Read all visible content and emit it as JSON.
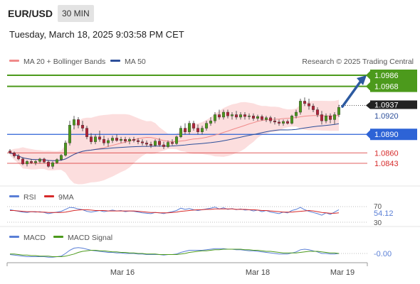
{
  "header": {
    "symbol": "EUR/USD",
    "timeframe": "30 MIN",
    "datetime": "Tuesday, March 18, 2025 9:03:58 PM CET"
  },
  "chart_data": {
    "type": "candlestick",
    "legend": [
      {
        "label": "MA 20 + Bollinger Bands",
        "color": "#f08a8a"
      },
      {
        "label": "MA 50",
        "color": "#2d4f9a"
      }
    ],
    "source": "Research © 2025 Trading Central",
    "x_tick_labels": [
      "Mar 16",
      "Mar 18",
      "Mar 19"
    ],
    "price_levels": [
      {
        "label": "1.0986",
        "value": 1.0986,
        "color": "#4c9a1c",
        "style": "resistance",
        "tag": "filled"
      },
      {
        "label": "1.0968",
        "value": 1.0968,
        "color": "#4c9a1c",
        "style": "resistance",
        "tag": "filled"
      },
      {
        "label": "1.0937",
        "value": 1.0937,
        "color": "#222222",
        "style": "current",
        "tag": "filled"
      },
      {
        "label": "1.0920",
        "value": 1.092,
        "color": "#2d4f9a",
        "style": "ma",
        "tag": "text"
      },
      {
        "label": "1.0890",
        "value": 1.089,
        "color": "#2d63d6",
        "style": "pivot",
        "tag": "filled"
      },
      {
        "label": "1.0860",
        "value": 1.086,
        "color": "#d62a2a",
        "style": "support",
        "tag": "text"
      },
      {
        "label": "1.0843",
        "value": 1.0843,
        "color": "#d62a2a",
        "style": "support",
        "tag": "text"
      }
    ],
    "candles_ohlc": [
      [
        1.0863,
        1.0866,
        1.0858,
        1.086
      ],
      [
        1.086,
        1.0862,
        1.0852,
        1.0855
      ],
      [
        1.0855,
        1.0858,
        1.0848,
        1.085
      ],
      [
        1.085,
        1.0853,
        1.084,
        1.0842
      ],
      [
        1.0842,
        1.0848,
        1.0838,
        1.0846
      ],
      [
        1.0846,
        1.085,
        1.0842,
        1.0844
      ],
      [
        1.0844,
        1.0848,
        1.084,
        1.0846
      ],
      [
        1.0846,
        1.0852,
        1.0843,
        1.085
      ],
      [
        1.085,
        1.0852,
        1.0843,
        1.0845
      ],
      [
        1.0845,
        1.0848,
        1.0836,
        1.0838
      ],
      [
        1.0838,
        1.0846,
        1.0834,
        1.0844
      ],
      [
        1.0844,
        1.0851,
        1.0842,
        1.0849
      ],
      [
        1.0849,
        1.0858,
        1.0847,
        1.0856
      ],
      [
        1.0856,
        1.088,
        1.0854,
        1.0876
      ],
      [
        1.0876,
        1.0912,
        1.0872,
        1.0905
      ],
      [
        1.0905,
        1.092,
        1.0898,
        1.0914
      ],
      [
        1.0914,
        1.0918,
        1.09,
        1.0905
      ],
      [
        1.0905,
        1.0912,
        1.0895,
        1.09
      ],
      [
        1.09,
        1.0904,
        1.0882,
        1.0886
      ],
      [
        1.0886,
        1.0892,
        1.0874,
        1.0878
      ],
      [
        1.0878,
        1.089,
        1.0874,
        1.0886
      ],
      [
        1.0886,
        1.0896,
        1.0878,
        1.0882
      ],
      [
        1.0882,
        1.0888,
        1.0872,
        1.0876
      ],
      [
        1.0876,
        1.0884,
        1.087,
        1.088
      ],
      [
        1.088,
        1.0888,
        1.0876,
        1.0884
      ],
      [
        1.0884,
        1.089,
        1.0878,
        1.088
      ],
      [
        1.088,
        1.0886,
        1.0876,
        1.0882
      ],
      [
        1.0882,
        1.0886,
        1.0876,
        1.0879
      ],
      [
        1.0879,
        1.0885,
        1.0874,
        1.0882
      ],
      [
        1.0882,
        1.0886,
        1.0877,
        1.088
      ],
      [
        1.088,
        1.0884,
        1.0874,
        1.0878
      ],
      [
        1.0878,
        1.0882,
        1.0872,
        1.0876
      ],
      [
        1.0876,
        1.088,
        1.087,
        1.0874
      ],
      [
        1.0874,
        1.0878,
        1.0868,
        1.0872
      ],
      [
        1.0872,
        1.0882,
        1.087,
        1.0879
      ],
      [
        1.0879,
        1.0884,
        1.087,
        1.0873
      ],
      [
        1.0873,
        1.0878,
        1.0866,
        1.087
      ],
      [
        1.087,
        1.088,
        1.0868,
        1.0877
      ],
      [
        1.0877,
        1.0882,
        1.0872,
        1.0875
      ],
      [
        1.0875,
        1.0888,
        1.0873,
        1.0886
      ],
      [
        1.0886,
        1.0904,
        1.0884,
        1.09
      ],
      [
        1.09,
        1.0908,
        1.089,
        1.0894
      ],
      [
        1.0894,
        1.0912,
        1.089,
        1.0908
      ],
      [
        1.0908,
        1.0912,
        1.0896,
        1.09
      ],
      [
        1.09,
        1.0906,
        1.089,
        1.0894
      ],
      [
        1.0894,
        1.0904,
        1.089,
        1.09
      ],
      [
        1.09,
        1.0912,
        1.0896,
        1.0908
      ],
      [
        1.0908,
        1.0918,
        1.0904,
        1.0912
      ],
      [
        1.0912,
        1.0926,
        1.0908,
        1.0922
      ],
      [
        1.0922,
        1.093,
        1.0914,
        1.0918
      ],
      [
        1.0918,
        1.093,
        1.0914,
        1.0926
      ],
      [
        1.0926,
        1.093,
        1.0916,
        1.092
      ],
      [
        1.092,
        1.0926,
        1.0914,
        1.0922
      ],
      [
        1.0922,
        1.0928,
        1.0914,
        1.0918
      ],
      [
        1.0918,
        1.0926,
        1.0914,
        1.0922
      ],
      [
        1.0922,
        1.0926,
        1.0914,
        1.0919
      ],
      [
        1.0919,
        1.0924,
        1.0914,
        1.092
      ],
      [
        1.092,
        1.0924,
        1.0912,
        1.0916
      ],
      [
        1.0916,
        1.0922,
        1.0912,
        1.0919
      ],
      [
        1.0919,
        1.0922,
        1.0912,
        1.0914
      ],
      [
        1.0914,
        1.092,
        1.091,
        1.0917
      ],
      [
        1.0917,
        1.092,
        1.0908,
        1.0912
      ],
      [
        1.0912,
        1.0918,
        1.0906,
        1.091
      ],
      [
        1.091,
        1.0914,
        1.0904,
        1.0908
      ],
      [
        1.0908,
        1.0914,
        1.0904,
        1.0911
      ],
      [
        1.0911,
        1.0914,
        1.0906,
        1.0908
      ],
      [
        1.0908,
        1.0922,
        1.0906,
        1.092
      ],
      [
        1.092,
        1.093,
        1.0916,
        1.0926
      ],
      [
        1.0926,
        1.0948,
        1.0922,
        1.0944
      ],
      [
        1.0944,
        1.095,
        1.0936,
        1.094
      ],
      [
        1.094,
        1.0948,
        1.093,
        1.0936
      ],
      [
        1.0936,
        1.094,
        1.0926,
        1.093
      ],
      [
        1.093,
        1.0934,
        1.0918,
        1.0922
      ],
      [
        1.0922,
        1.0928,
        1.0906,
        1.0912
      ],
      [
        1.0912,
        1.0924,
        1.0908,
        1.092
      ],
      [
        1.092,
        1.0924,
        1.0908,
        1.0914
      ],
      [
        1.0914,
        1.0926,
        1.0906,
        1.0922
      ],
      [
        1.0922,
        1.0938,
        1.0918,
        1.0934
      ]
    ],
    "projection": {
      "from": 1.0934,
      "to": 1.0986,
      "color": "#2d5aa0"
    },
    "rsi": {
      "legend": [
        {
          "label": "RSI",
          "color": "#5a7fd6"
        },
        {
          "label": "9MA",
          "color": "#d62a2a"
        }
      ],
      "levels": [
        "70",
        "30"
      ],
      "value_label": "54.12",
      "ylim": [
        20,
        80
      ],
      "values": [
        62,
        60,
        58,
        56,
        55,
        57,
        56,
        57,
        55,
        52,
        54,
        56,
        58,
        63,
        68,
        67,
        64,
        62,
        58,
        56,
        58,
        60,
        57,
        59,
        61,
        59,
        60,
        57,
        59,
        58,
        56,
        54,
        53,
        52,
        55,
        54,
        52,
        55,
        57,
        60,
        66,
        63,
        65,
        62,
        60,
        62,
        64,
        66,
        69,
        64,
        67,
        63,
        65,
        62,
        64,
        61,
        62,
        59,
        61,
        57,
        60,
        56,
        54,
        52,
        56,
        54,
        60,
        63,
        68,
        62,
        58,
        55,
        52,
        48,
        54,
        50,
        56,
        62
      ],
      "ma": [
        60,
        60,
        59,
        58,
        57,
        57,
        57,
        56,
        56,
        55,
        55,
        55,
        55,
        56,
        58,
        60,
        61,
        62,
        62,
        61,
        60,
        60,
        60,
        59,
        59,
        59,
        59,
        59,
        59,
        59,
        58,
        57,
        56,
        55,
        55,
        54,
        54,
        54,
        55,
        56,
        58,
        59,
        60,
        61,
        62,
        62,
        63,
        63,
        64,
        64,
        64,
        64,
        64,
        63,
        63,
        63,
        62,
        62,
        61,
        60,
        60,
        59,
        58,
        57,
        56,
        56,
        56,
        57,
        58,
        59,
        60,
        59,
        57,
        55,
        54,
        53,
        53,
        54
      ]
    },
    "macd": {
      "legend": [
        {
          "label": "MACD",
          "color": "#5a7fd6"
        },
        {
          "label": "MACD Signal",
          "color": "#4c9a1c"
        }
      ],
      "value_label": "-0.00",
      "ylim": [
        -1.2,
        1.6
      ],
      "values": [
        -0.2,
        -0.3,
        -0.4,
        -0.5,
        -0.6,
        -0.6,
        -0.6,
        -0.6,
        -0.6,
        -0.7,
        -0.7,
        -0.6,
        -0.5,
        0.0,
        0.6,
        1.0,
        1.1,
        1.0,
        0.8,
        0.6,
        0.5,
        0.4,
        0.3,
        0.2,
        0.2,
        0.1,
        0.1,
        0.0,
        0.0,
        0.0,
        -0.1,
        -0.1,
        -0.2,
        -0.2,
        -0.2,
        -0.2,
        -0.3,
        -0.2,
        -0.2,
        -0.1,
        0.2,
        0.4,
        0.6,
        0.6,
        0.6,
        0.6,
        0.7,
        0.8,
        0.9,
        0.9,
        0.9,
        0.8,
        0.8,
        0.7,
        0.7,
        0.6,
        0.5,
        0.5,
        0.4,
        0.3,
        0.2,
        0.1,
        0.0,
        -0.1,
        -0.1,
        -0.1,
        0.1,
        0.3,
        0.7,
        0.8,
        0.7,
        0.5,
        0.3,
        0.0,
        0.0,
        -0.1,
        -0.1,
        0.0
      ],
      "signal": [
        -0.1,
        -0.1,
        -0.2,
        -0.3,
        -0.3,
        -0.4,
        -0.4,
        -0.5,
        -0.5,
        -0.5,
        -0.6,
        -0.6,
        -0.6,
        -0.5,
        -0.3,
        -0.1,
        0.2,
        0.4,
        0.5,
        0.6,
        0.6,
        0.5,
        0.5,
        0.4,
        0.3,
        0.3,
        0.2,
        0.2,
        0.1,
        0.1,
        0.0,
        0.0,
        -0.1,
        -0.1,
        -0.1,
        -0.2,
        -0.2,
        -0.2,
        -0.2,
        -0.2,
        -0.1,
        0.0,
        0.2,
        0.3,
        0.4,
        0.5,
        0.5,
        0.6,
        0.7,
        0.7,
        0.8,
        0.8,
        0.8,
        0.8,
        0.8,
        0.7,
        0.7,
        0.6,
        0.6,
        0.5,
        0.4,
        0.4,
        0.3,
        0.2,
        0.1,
        0.1,
        0.1,
        0.1,
        0.2,
        0.3,
        0.4,
        0.4,
        0.4,
        0.3,
        0.2,
        0.1,
        0.1,
        0.0
      ]
    }
  }
}
